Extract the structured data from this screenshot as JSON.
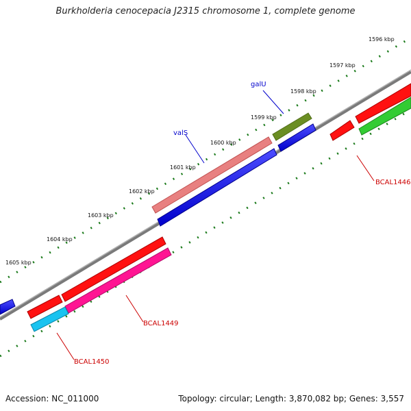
{
  "title": "Burkholderia cenocepacia J2315 chromosome 1, complete genome",
  "footer": {
    "accession": "Accession: NC_011000",
    "summary": "Topology: circular; Length: 3,870,082 bp; Genes: 3,557"
  },
  "colors": {
    "backbone": "#808080",
    "tick": "#1a7a1a",
    "ruler_text": "#111111",
    "gene_label": "#0000cc",
    "locus_label": "#cc0000"
  },
  "ruler_labels": [
    "1596 kbp",
    "1597 kbp",
    "1598 kbp",
    "1599 kbp",
    "1600 kbp",
    "1601 kbp",
    "1602 kbp",
    "1603 kbp",
    "1604 kbp",
    "1605 kbp"
  ],
  "gene_labels": [
    "galU",
    "valS"
  ],
  "locus_labels": [
    "BCAL1446",
    "BCAL1449",
    "BCAL1450"
  ]
}
